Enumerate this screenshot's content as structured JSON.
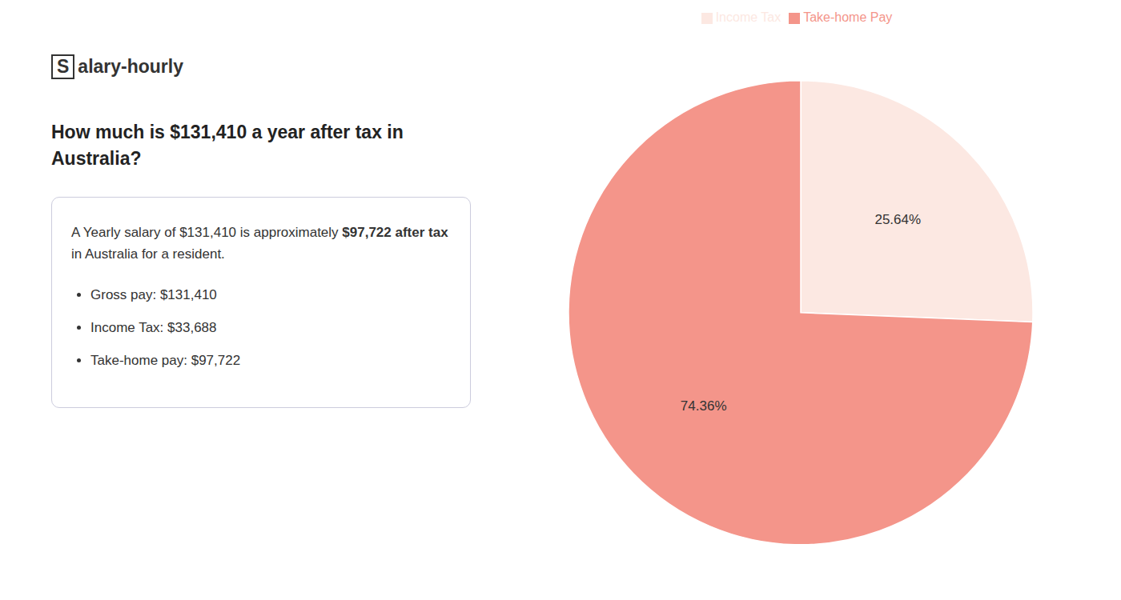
{
  "chart_data": {
    "type": "pie",
    "title": "How much is $131,410 a year after tax in\nAustralia?",
    "annotations": [
      "S",
      "alary-hourly",
      "A Yearly salary of $131,410 is approximately ",
      "$97,722 after tax",
      "in Australia for a resident.",
      "Gross pay: $131,410",
      "Income Tax: $33,688",
      "Take-home pay: $97,722"
    ],
    "categories": [
      "Income Tax",
      "Take-home Pay"
    ],
    "values": [
      25.64,
      74.36
    ],
    "value_labels": [
      "25.64%",
      "74.36%"
    ],
    "colors": [
      "#fce8e2",
      "#f4958a"
    ],
    "data_labels": true,
    "legend": "top"
  }
}
